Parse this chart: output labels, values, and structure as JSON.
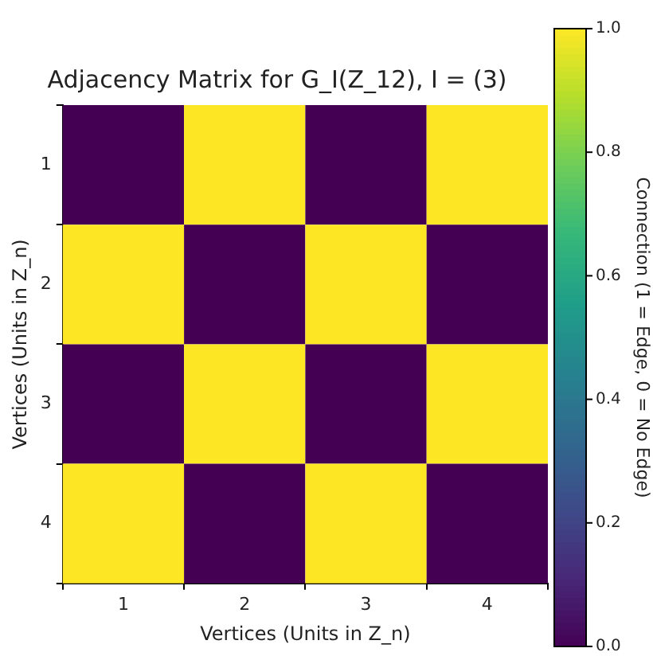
{
  "chart_data": {
    "type": "heatmap",
    "title": "Adjacency Matrix for G_I(Z_12), I = (3)",
    "xlabel": "Vertices (Units in Z_n)",
    "ylabel": "Vertices (Units in Z_n)",
    "clabel": "Connection (1 = Edge, 0 = No Edge)",
    "categories": [
      "1",
      "2",
      "3",
      "4"
    ],
    "y_categories": [
      "1",
      "2",
      "3",
      "4"
    ],
    "cells": [
      [
        0,
        1,
        0,
        1
      ],
      [
        1,
        0,
        1,
        0
      ],
      [
        0,
        1,
        0,
        1
      ],
      [
        1,
        0,
        1,
        0
      ]
    ],
    "clim": [
      0,
      1
    ],
    "cticks": [
      {
        "value": 0,
        "label": "0.0"
      },
      {
        "value": 0.2,
        "label": "0.2"
      },
      {
        "value": 0.4,
        "label": "0.4"
      },
      {
        "value": 0.6,
        "label": "0.6"
      },
      {
        "value": 0.8,
        "label": "0.8"
      },
      {
        "value": 1,
        "label": "1.0"
      }
    ]
  }
}
